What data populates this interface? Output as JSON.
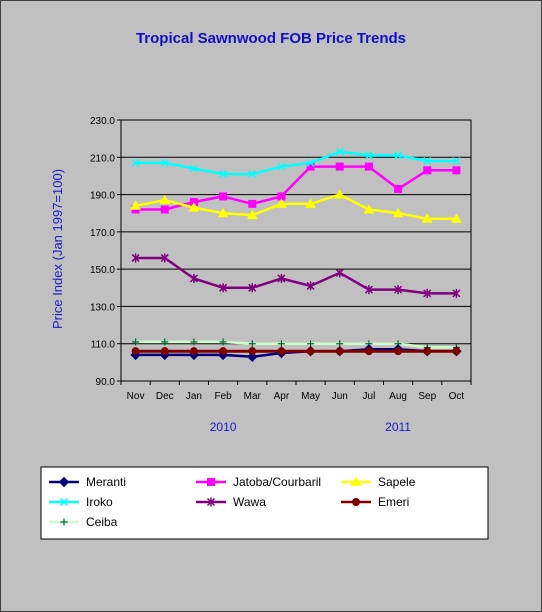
{
  "chart_data": {
    "type": "line",
    "title": "Tropical Sawnwood FOB Price Trends",
    "ylabel": "Price Index  (Jan 1997=100)",
    "xlabel": "",
    "categories": [
      "Nov",
      "Dec",
      "Jan",
      "Feb",
      "Mar",
      "Apr",
      "May",
      "Jun",
      "Jul",
      "Aug",
      "Sep",
      "Oct"
    ],
    "year_labels": [
      {
        "label": "2010",
        "category": "Feb"
      },
      {
        "label": "2011",
        "category": "Aug"
      }
    ],
    "ylim": [
      90,
      230
    ],
    "yticks": [
      90,
      110,
      130,
      150,
      170,
      190,
      210,
      230
    ],
    "ytick_labels": [
      "90.0",
      "110.0",
      "130.0",
      "150.0",
      "170.0",
      "190.0",
      "210.0",
      "230.0"
    ],
    "grid": true,
    "legend_position": "bottom",
    "series": [
      {
        "name": "Meranti",
        "color": "#00007a",
        "marker": "diamond",
        "values": [
          104,
          104,
          104,
          104,
          103,
          105,
          106,
          106,
          107,
          107,
          106,
          106
        ]
      },
      {
        "name": "Jatoba/Courbaril",
        "color": "#ff00ff",
        "marker": "square",
        "values": [
          182,
          182,
          186,
          189,
          185,
          189,
          205,
          205,
          205,
          193,
          203,
          203
        ]
      },
      {
        "name": "Sapele",
        "color": "#ffff00",
        "marker": "triangle",
        "values": [
          184,
          187,
          183,
          180,
          179,
          185,
          185,
          190,
          182,
          180,
          177,
          177
        ]
      },
      {
        "name": "Iroko",
        "color": "#00ffff",
        "marker": "x",
        "values": [
          207,
          207,
          204,
          201,
          201,
          205,
          207,
          213,
          211,
          211,
          208,
          208
        ]
      },
      {
        "name": "Wawa",
        "color": "#800080",
        "marker": "star",
        "values": [
          156,
          156,
          145,
          140,
          140,
          145,
          141,
          148,
          139,
          139,
          137,
          137
        ]
      },
      {
        "name": "Emeri",
        "color": "#800000",
        "marker": "circle",
        "values": [
          106,
          106,
          106,
          106,
          106,
          106,
          106,
          106,
          106,
          106,
          106,
          106
        ]
      },
      {
        "name": "Ceiba",
        "color": "#ccffcc",
        "marker": "plus",
        "values": [
          111,
          111,
          111,
          111,
          110,
          110,
          110,
          110,
          110,
          110,
          108,
          108
        ]
      }
    ]
  }
}
